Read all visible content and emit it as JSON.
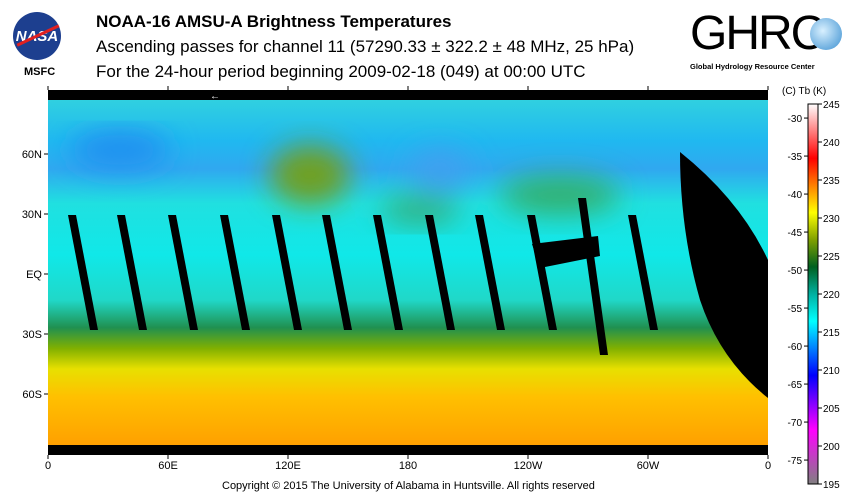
{
  "header": {
    "title": "NOAA-16 AMSU-A Brightness Temperatures",
    "subtitle": "Ascending passes for channel 11 (57290.33 ± 322.2 ± 48 MHz, 25 hPa)",
    "period": "For the 24-hour period beginning 2009-02-18 (049) at 00:00 UTC"
  },
  "logos": {
    "nasa": "NASA",
    "nasa_center": "MSFC",
    "ghrc": "GHRC",
    "ghrc_full": "Global Hydrology Resource Center"
  },
  "map": {
    "lat_labels": [
      "60N",
      "30N",
      "EQ",
      "30S",
      "60S"
    ],
    "lon_labels": [
      "0",
      "60E",
      "120E",
      "180",
      "120W",
      "60W",
      "0"
    ],
    "direction_marker": "←"
  },
  "colorbar": {
    "header": "(C)  Tb  (K)",
    "celsius_labels": [
      "-30",
      "-35",
      "-40",
      "-45",
      "-50",
      "-55",
      "-60",
      "-65",
      "-70",
      "-75"
    ],
    "kelvin_labels": [
      "245",
      "240",
      "235",
      "230",
      "225",
      "220",
      "215",
      "210",
      "205",
      "200",
      "195"
    ],
    "range_k": [
      195,
      245
    ],
    "colors": [
      "#808080",
      "#c040c0",
      "#ff00ff",
      "#8000ff",
      "#0000ff",
      "#0080ff",
      "#00ffff",
      "#00b0a0",
      "#006020",
      "#80a000",
      "#ffff00",
      "#ff8000",
      "#ff0000",
      "#ff8080",
      "#ffffff"
    ]
  },
  "footer": {
    "copyright": "Copyright © 2015 The University of Alabama in Huntsville.  All rights reserved"
  }
}
